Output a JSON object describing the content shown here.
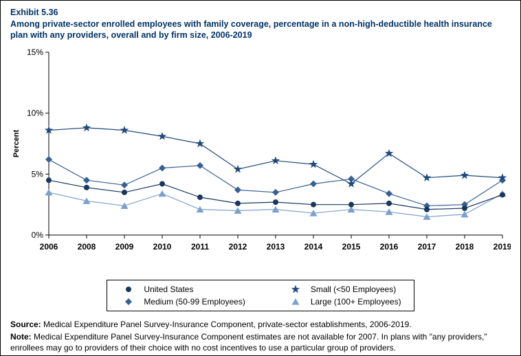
{
  "header": {
    "exhibit": "Exhibit 5.36",
    "title": "Among private-sector enrolled employees with family coverage, percentage in a non-high-deductible health insurance plan with any providers, overall and by firm size, 2006-2019"
  },
  "chart_data": {
    "type": "line",
    "title": "",
    "xlabel": "",
    "ylabel": "Percent",
    "ylim": [
      0,
      15
    ],
    "yticks": [
      0,
      5,
      10,
      15
    ],
    "ytick_labels": [
      "0%",
      "5%",
      "10%",
      "15%"
    ],
    "grid": false,
    "legend_position": "bottom",
    "categories": [
      "2006",
      "2008",
      "2009",
      "2010",
      "2011",
      "2012",
      "2013",
      "2014",
      "2015",
      "2016",
      "2017",
      "2018",
      "2019"
    ],
    "series": [
      {
        "name": "United States",
        "marker": "circle",
        "color": "#17375E",
        "values": [
          4.5,
          3.9,
          3.5,
          4.2,
          3.1,
          2.6,
          2.7,
          2.5,
          2.5,
          2.6,
          2.1,
          2.2,
          3.3
        ]
      },
      {
        "name": "Small (<50 Employees)",
        "marker": "star",
        "color": "#1F497D",
        "values": [
          8.6,
          8.8,
          8.6,
          8.1,
          7.5,
          5.4,
          6.1,
          5.8,
          4.2,
          6.7,
          4.7,
          4.9,
          4.7
        ]
      },
      {
        "name": "Medium (50-99 Employees)",
        "marker": "diamond",
        "color": "#376092",
        "values": [
          6.2,
          4.5,
          4.1,
          5.5,
          5.7,
          3.7,
          3.5,
          4.2,
          4.6,
          3.4,
          2.4,
          2.5,
          4.5
        ]
      },
      {
        "name": "Large (100+ Employees)",
        "marker": "triangle",
        "color": "#7BA0CC",
        "values": [
          3.5,
          2.8,
          2.4,
          3.4,
          2.1,
          2.0,
          2.1,
          1.8,
          2.1,
          1.9,
          1.5,
          1.7,
          3.4
        ]
      }
    ]
  },
  "footer": {
    "source_label": "Source:",
    "source_text": " Medical Expenditure Panel Survey-Insurance Component, private-sector establishments, 2006-2019.",
    "note_label": "Note:",
    "note_text": " Medical Expenditure Panel Survey-Insurance Component estimates are not available for 2007. In plans with \"any providers,\" enrollees may go to providers of their choice with no cost incentives to use a particular group of providers."
  }
}
